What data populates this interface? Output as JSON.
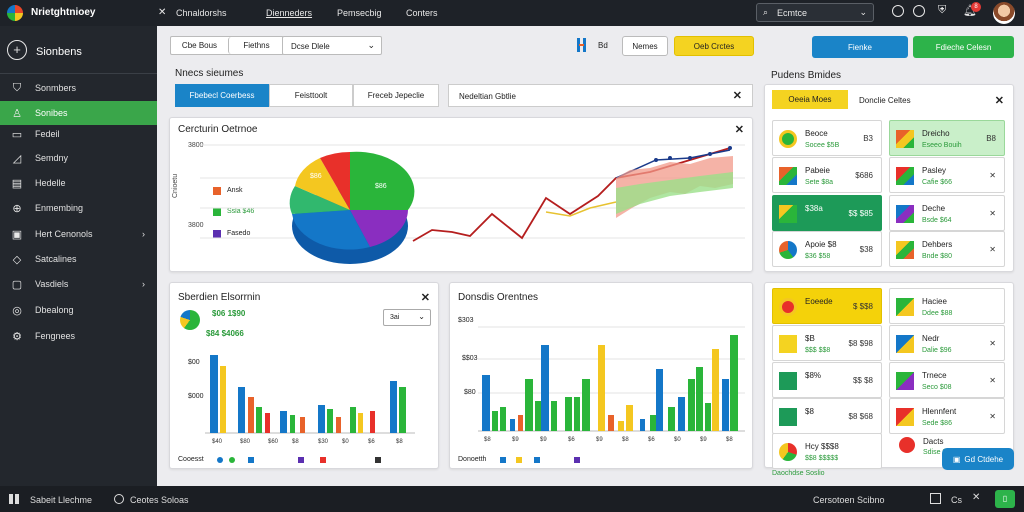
{
  "app": {
    "title": "Nrietghtnioey"
  },
  "top_menu": [
    "Chnaldorshs",
    "Dienneders",
    "Pemsecbig",
    "Conters"
  ],
  "search": {
    "value": "Ecmtce"
  },
  "notifications": {
    "count": "8"
  },
  "sidebar": {
    "header": "Sionbens",
    "items": [
      {
        "label": "Sonmbers",
        "icon": "shield-icon"
      },
      {
        "label": "Sonibes",
        "icon": "person-icon",
        "active": true
      },
      {
        "label": "Fedeil",
        "icon": "document-icon"
      },
      {
        "label": "Semdny",
        "icon": "chart-icon"
      },
      {
        "label": "Hedelle",
        "icon": "file-icon"
      },
      {
        "label": "Enmembing",
        "icon": "lock-icon"
      },
      {
        "label": "Hert Cenonols",
        "icon": "folder-icon",
        "chevron": true
      },
      {
        "label": "Satcalines",
        "icon": "tag-icon"
      },
      {
        "label": "Vasdiels",
        "icon": "box-icon",
        "chevron": true
      },
      {
        "label": "Dbealong",
        "icon": "globe-icon"
      },
      {
        "label": "Fengnees",
        "icon": "settings-icon"
      }
    ]
  },
  "toolbar": {
    "seg1": "Cbe Bous",
    "seg2": "Fiethns",
    "dropdown": "Dcse Dlele",
    "label_small": "Bd",
    "btn_outline": "Nemes",
    "btn_yellow": "Oeb Crctes",
    "btn_blue": "Fienke",
    "btn_green": "Fdieche Celesn"
  },
  "main": {
    "section_title": "Nnecs sieumes",
    "tabs": [
      "Fbebecl Coerbess",
      "Feisttoolt",
      "Freceb Jepeclie"
    ],
    "filter_label": "Nedeltian Gbtlie"
  },
  "chart1": {
    "title": "Cercturin Oetrnoe",
    "ytick": "3800",
    "ytick2": "3800",
    "ylabel": "Cnioetu",
    "legend": [
      {
        "label": "Ansk",
        "color": "#e8622a"
      },
      {
        "label": "Ssla $46",
        "color": "#2ab53a"
      },
      {
        "label": "Fasedo",
        "color": "#5b2fb0"
      }
    ],
    "pie_label": "$86",
    "pie_label2": "$86"
  },
  "chart2": {
    "title": "Sberdien Elsorrnin",
    "value1": "$06 1$90",
    "value2": "$84 $4066",
    "select": "3ai",
    "yticks": [
      "$00",
      "$000"
    ],
    "xticks": [
      "$40",
      "$80",
      "$60",
      "$8",
      "$30",
      "$0",
      "$6",
      "$8"
    ],
    "footer": "Cooesst"
  },
  "chart3": {
    "title": "Donsdis Orentnes",
    "yticks": [
      "$303",
      "$$03",
      "$80"
    ],
    "xticks": [
      "$8",
      "$9",
      "$9",
      "$6",
      "$9",
      "$8",
      "$6",
      "$0",
      "$9",
      "$8"
    ],
    "footer": "Donoetth"
  },
  "right_panel": {
    "title": "Pudens Bmides",
    "tab_active": "Oeeia Moes",
    "tab_other": "Donclie Celtes",
    "items_left": [
      {
        "t1": "Beoce",
        "t2": "Socee $5B",
        "val": "B3"
      },
      {
        "t1": "Pabeie",
        "t2": "Sete $8a",
        "val": "$686"
      },
      {
        "t1": "$38a",
        "t2": "",
        "val": "$$ $85"
      },
      {
        "t1": "Apoie $8",
        "t2": "$36 $58",
        "val": "$38"
      }
    ],
    "items_right": [
      {
        "t1": "Dreicho",
        "t2": "Eseeo Bouih",
        "val": "B8"
      },
      {
        "t1": "Pasley",
        "t2": "Cafie $66",
        "val": ""
      },
      {
        "t1": "Deche",
        "t2": "Bsde $64",
        "val": ""
      },
      {
        "t1": "Dehbers",
        "t2": "Bnde $80",
        "val": ""
      }
    ],
    "items2_left": [
      {
        "t1": "Eoeede",
        "t2": "",
        "val": "$ $$8"
      },
      {
        "t1": "$B",
        "t2": "$$$ $$8",
        "val": "$8 $98"
      },
      {
        "t1": "$8%",
        "t2": "",
        "val": "$$ $8"
      },
      {
        "t1": "$8",
        "t2": "",
        "val": "$8 $68"
      },
      {
        "t1": "Hcy $$$8",
        "t2": "$$8 $$$$$",
        "val": ""
      }
    ],
    "items2_right": [
      {
        "t1": "Haciee",
        "t2": "Ddee $88",
        "val": ""
      },
      {
        "t1": "Nedr",
        "t2": "Dalie $96",
        "val": ""
      },
      {
        "t1": "Trnece",
        "t2": "Seco $08",
        "val": ""
      },
      {
        "t1": "Hlennfent",
        "t2": "Sede $86",
        "val": ""
      },
      {
        "t1": "Dacts",
        "t2": "Sdise $96",
        "val": ""
      }
    ],
    "footer_link": "Daochdse Soslio",
    "chat_btn": "Gd Ctdehe"
  },
  "bottom": {
    "left": "Sabeit Llechme",
    "mid": "Ceotes Soloas",
    "right": "Cersotoen Scibno",
    "code": "Cs"
  },
  "colors": {
    "sidebar_active": "#3aa64a",
    "accent_blue": "#1477c8",
    "accent_green": "#2db34a",
    "accent_yellow": "#f4d321"
  }
}
